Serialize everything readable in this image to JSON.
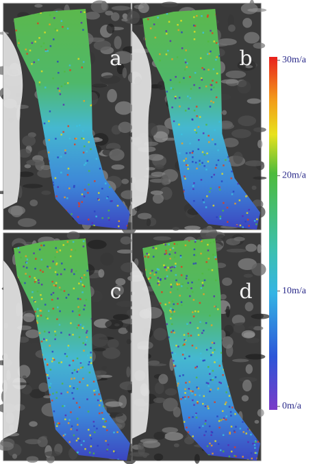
{
  "panels": [
    {
      "label": "a"
    },
    {
      "label": "b"
    },
    {
      "label": "c"
    },
    {
      "label": "d"
    }
  ],
  "colorbar": {
    "range": [
      0,
      30
    ],
    "ticks": [
      {
        "value": 30,
        "label": "30m/a"
      },
      {
        "value": 20,
        "label": "20m/a"
      },
      {
        "value": 10,
        "label": "10m/a"
      },
      {
        "value": 0,
        "label": "0m/a"
      }
    ]
  }
}
